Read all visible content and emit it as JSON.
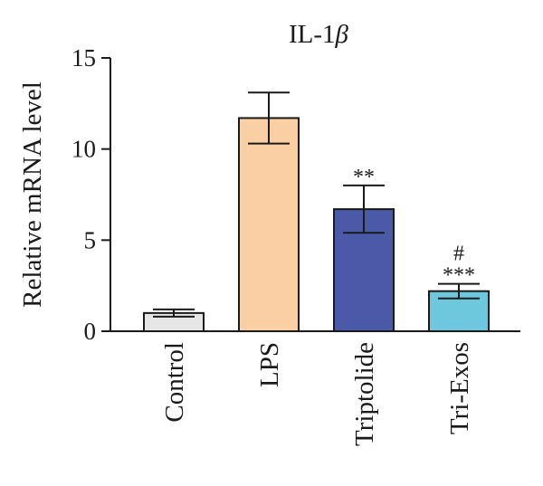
{
  "chart_data": {
    "type": "bar",
    "title": "IL-1β",
    "ylabel": "Relative mRNA level",
    "xlabel": "",
    "ylim": [
      0,
      15
    ],
    "yticks": [
      0,
      5,
      10,
      15
    ],
    "categories": [
      "Control",
      "LPS",
      "Triptolide",
      "Tri-Exos"
    ],
    "values": [
      1.0,
      11.7,
      6.7,
      2.2
    ],
    "error": [
      0.2,
      1.4,
      1.3,
      0.4
    ],
    "colors": [
      "#e6e6e6",
      "#f9cfa3",
      "#4a5aa8",
      "#6ec8dd"
    ],
    "annotations": [
      {
        "category": "Triptolide",
        "lines": [
          "**"
        ]
      },
      {
        "category": "Tri-Exos",
        "lines": [
          "#",
          "***"
        ]
      }
    ],
    "grid": false,
    "legend": "none"
  }
}
